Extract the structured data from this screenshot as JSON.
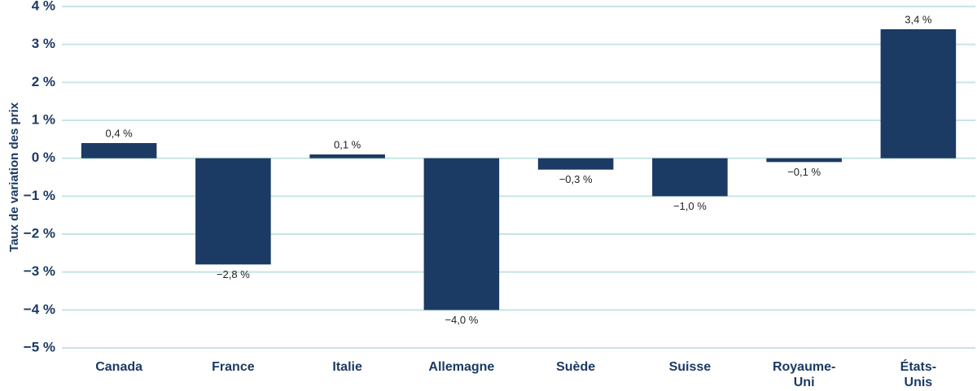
{
  "chart_data": {
    "type": "bar",
    "y_label": "Taux de variation des prix",
    "categories": [
      "Canada",
      "France",
      "Italie",
      "Allemagne",
      "Suède",
      "Suisse",
      "Royaume-Uni",
      "États-Unis"
    ],
    "values": [
      0.4,
      -2.8,
      0.1,
      -4.0,
      -0.3,
      -1.0,
      -0.1,
      3.4
    ],
    "value_labels": [
      "0,4 %",
      "−2,8 %",
      "0,1 %",
      "−4,0 %",
      "−0,3 %",
      "−1,0 %",
      "−0,1 %",
      "3,4 %"
    ],
    "color": "#1b3a64",
    "ylim": [
      -5,
      4
    ],
    "yticks": [
      {
        "value": -5,
        "label": "−5 %"
      },
      {
        "value": -4,
        "label": "−4 %"
      },
      {
        "value": -3,
        "label": "−3 %"
      },
      {
        "value": -2,
        "label": "−2 %"
      },
      {
        "value": -1,
        "label": "−1 %"
      },
      {
        "value": 0,
        "label": "0 %"
      },
      {
        "value": 1,
        "label": "1 %"
      },
      {
        "value": 2,
        "label": "2 %"
      },
      {
        "value": 3,
        "label": "3 %"
      },
      {
        "value": 4,
        "label": "4 %"
      }
    ],
    "grid": true
  }
}
